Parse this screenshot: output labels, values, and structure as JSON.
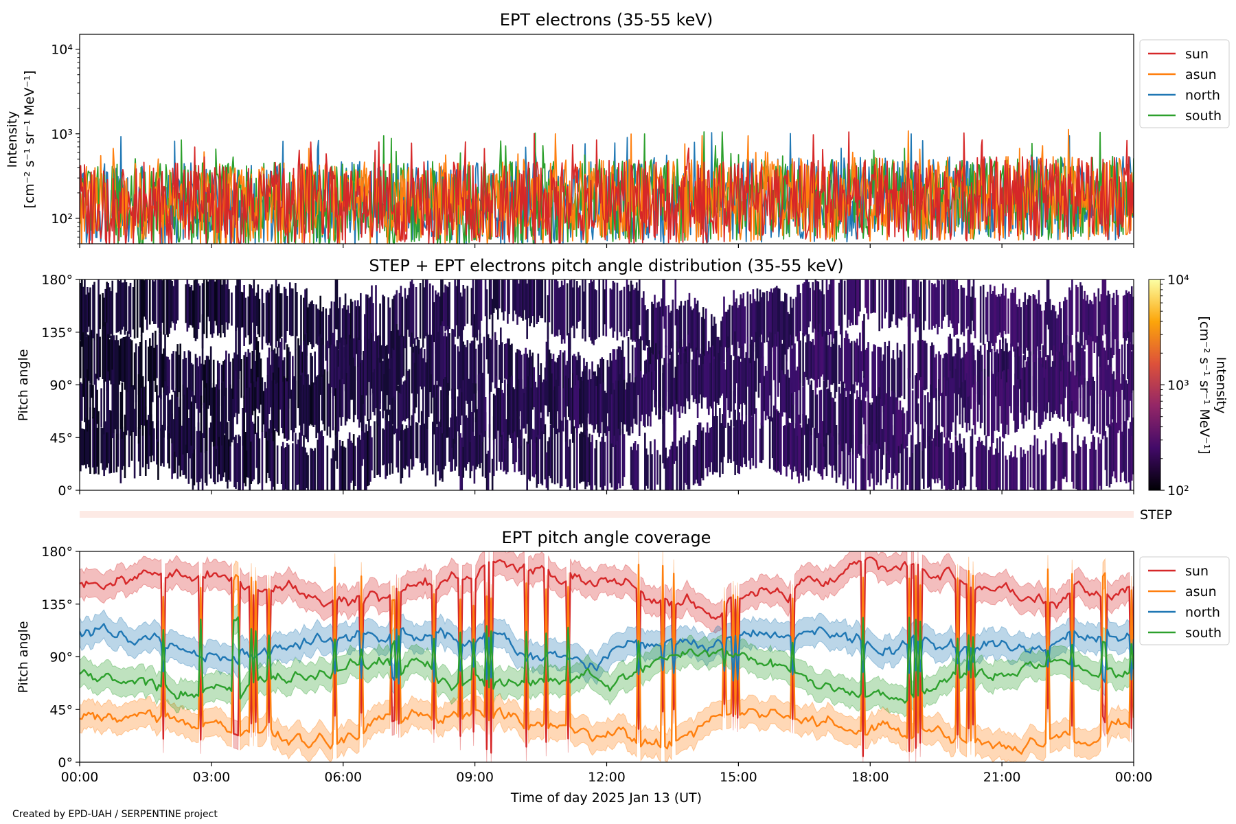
{
  "chart_data": [
    {
      "type": "line",
      "title": "EPT electrons (35-55 keV)",
      "ylabel_line1": "Intensity",
      "ylabel_line2": "[cm⁻² s⁻¹ sr⁻¹ MeV⁻¹]",
      "yscale": "log",
      "ylim": [
        50,
        15000
      ],
      "yticks": [
        {
          "value": 100,
          "label": "10²"
        },
        {
          "value": 1000,
          "label": "10³"
        },
        {
          "value": 10000,
          "label": "10⁴"
        }
      ],
      "xlim": [
        "2025-01-13 00:00",
        "2025-01-14 00:00"
      ],
      "legend_position": "outside-right",
      "baseline_level": 140,
      "series": [
        {
          "name": "sun",
          "color": "#d62728",
          "peak_samples": [
            {
              "t": "2025-01-13 08:47",
              "v": 800
            },
            {
              "t": "2025-01-13 20:32",
              "v": 720
            },
            {
              "t": "2025-01-13 16:55",
              "v": 650
            }
          ]
        },
        {
          "name": "asun",
          "color": "#ff7f0e",
          "peak_samples": [
            {
              "t": "2025-01-13 02:50",
              "v": 610
            },
            {
              "t": "2025-01-13 15:40",
              "v": 600
            },
            {
              "t": "2025-01-13 08:20",
              "v": 560
            }
          ]
        },
        {
          "name": "north",
          "color": "#1f77b4",
          "peak_samples": [
            {
              "t": "2025-01-13 10:22",
              "v": 700
            },
            {
              "t": "2025-01-13 21:40",
              "v": 560
            },
            {
              "t": "2025-01-13 13:05",
              "v": 520
            }
          ]
        },
        {
          "name": "south",
          "color": "#2ca02c",
          "peak_samples": [
            {
              "t": "2025-01-13 09:42",
              "v": 720
            },
            {
              "t": "2025-01-13 18:05",
              "v": 640
            },
            {
              "t": "2025-01-13 11:30",
              "v": 560
            }
          ]
        }
      ]
    },
    {
      "type": "heatmap",
      "title": "STEP + EPT electrons pitch angle distribution (35-55 keV)",
      "ylabel": "Pitch angle",
      "ylim": [
        0,
        180
      ],
      "yticks": [
        "0°",
        "45°",
        "90°",
        "135°",
        "180°"
      ],
      "xlim": [
        "2025-01-13 00:00",
        "2025-01-14 00:00"
      ],
      "colorbar": {
        "label_line1": "Intensity",
        "label_line2": "[cm⁻² s⁻¹ sr⁻¹ MeV⁻¹]",
        "scale": "log",
        "range": [
          100,
          10000
        ],
        "ticks": [
          {
            "value": 100,
            "label": "10²"
          },
          {
            "value": 1000,
            "label": "10³"
          },
          {
            "value": 10000,
            "label": "10⁴"
          }
        ],
        "colormap": "inferno",
        "colors": [
          "#000004",
          "#420a68",
          "#932667",
          "#dd513a",
          "#fca50a",
          "#fcffa4"
        ]
      },
      "typical_intensity": 180
    },
    {
      "type": "strip",
      "label": "STEP",
      "color": "#fdeae5"
    },
    {
      "type": "line",
      "title": "EPT pitch angle coverage",
      "ylabel": "Pitch angle",
      "ylim": [
        0,
        180
      ],
      "yticks": [
        "0°",
        "45°",
        "90°",
        "135°",
        "180°"
      ],
      "xlim": [
        "2025-01-13 00:00",
        "2025-01-14 00:00"
      ],
      "xticks": [
        "00:00",
        "03:00",
        "06:00",
        "09:00",
        "12:00",
        "15:00",
        "18:00",
        "21:00",
        "00:00"
      ],
      "xlabel": "Time of day 2025 Jan 13 (UT)",
      "legend_position": "outside-right",
      "band_halfwidth_deg": 12,
      "series": [
        {
          "name": "sun",
          "color": "#d62728",
          "mean_deg": 150
        },
        {
          "name": "asun",
          "color": "#ff7f0e",
          "mean_deg": 30
        },
        {
          "name": "north",
          "color": "#1f77b4",
          "mean_deg": 100
        },
        {
          "name": "south",
          "color": "#2ca02c",
          "mean_deg": 75
        }
      ]
    }
  ],
  "credit": "Created by EPD-UAH / SERPENTINE project"
}
